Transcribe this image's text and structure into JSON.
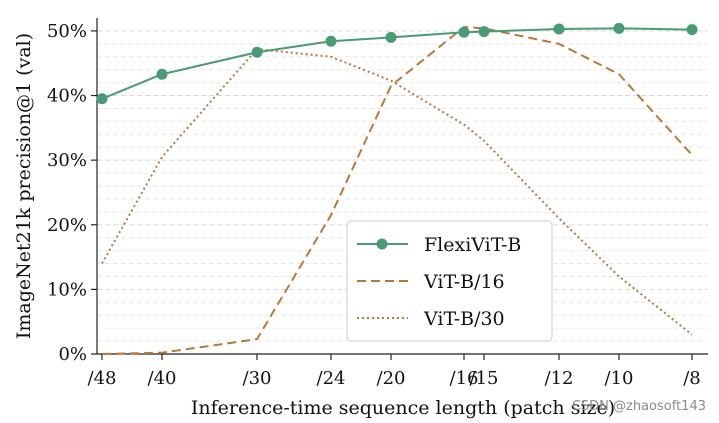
{
  "chart_data": {
    "type": "line",
    "title": "",
    "xlabel": "Inference-time sequence length (patch size)",
    "ylabel": "ImageNet21k precision@1 (val)",
    "x_ticks": [
      "/48",
      "/40",
      "/30",
      "/24",
      "/20",
      "/16",
      "/15",
      "/12",
      "/10",
      "/8"
    ],
    "y_ticks": [
      "0%",
      "10%",
      "20%",
      "30%",
      "40%",
      "50%"
    ],
    "ylim": [
      0,
      52
    ],
    "grid": "y-minor-dashed",
    "legend_position": "lower-center",
    "series": [
      {
        "name": "FlexiViT-B",
        "style": "solid-marker",
        "color": "#4a9a77",
        "x": [
          "/48",
          "/40",
          "/30",
          "/24",
          "/20",
          "/16",
          "/15",
          "/12",
          "/10",
          "/8"
        ],
        "values": [
          39.5,
          43.3,
          46.7,
          48.4,
          49.0,
          49.8,
          49.9,
          50.3,
          50.4,
          50.2
        ]
      },
      {
        "name": "ViT-B/16",
        "style": "dashed",
        "color": "#b8783a",
        "x": [
          "/48",
          "/40",
          "/30",
          "/24",
          "/20",
          "/16",
          "/15",
          "/12",
          "/10",
          "/8"
        ],
        "values": [
          0,
          0.2,
          2.3,
          21.5,
          41.5,
          50.6,
          50.4,
          48.0,
          43.3,
          30.8
        ]
      },
      {
        "name": "ViT-B/30",
        "style": "dotted",
        "color": "#b8783a",
        "x": [
          "/48",
          "/40",
          "/30",
          "/24",
          "/20",
          "/16",
          "/15",
          "/12",
          "/10",
          "/8"
        ],
        "values": [
          14.0,
          30.5,
          47.2,
          46.0,
          42.3,
          35.5,
          33.0,
          21.0,
          12.0,
          3.0
        ]
      }
    ]
  },
  "watermark": "CSDN @zhaosoft143"
}
